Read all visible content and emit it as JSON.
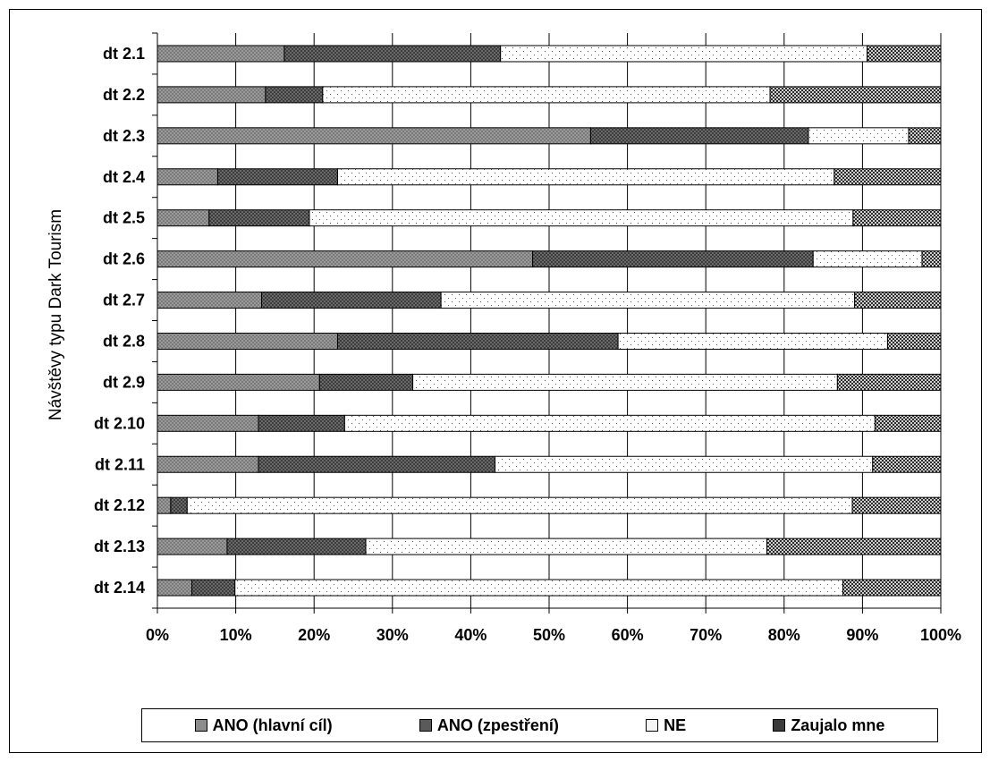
{
  "chart_data": {
    "type": "bar",
    "orientation": "horizontal",
    "stacked": "percent",
    "title": "",
    "xlabel": "",
    "ylabel": "Návštěvy typu Dark Tourism",
    "xlim": [
      0,
      100
    ],
    "x_ticks": [
      "0%",
      "10%",
      "20%",
      "30%",
      "40%",
      "50%",
      "60%",
      "70%",
      "80%",
      "90%",
      "100%"
    ],
    "categories": [
      "dt 2.1",
      "dt 2.2",
      "dt 2.3",
      "dt 2.4",
      "dt 2.5",
      "dt 2.6",
      "dt 2.7",
      "dt 2.8",
      "dt 2.9",
      "dt 2.10",
      "dt 2.11",
      "dt 2.12",
      "dt 2.13",
      "dt 2.14"
    ],
    "series": [
      {
        "name": "ANO (hlavní cíl)",
        "values": [
          16.2,
          13.8,
          55.3,
          7.7,
          6.6,
          47.9,
          13.3,
          23.0,
          20.7,
          12.9,
          12.9,
          1.7,
          8.9,
          4.4
        ]
      },
      {
        "name": "ANO (zpestření)",
        "values": [
          27.6,
          7.3,
          27.8,
          15.3,
          12.8,
          35.8,
          22.9,
          35.8,
          11.9,
          11.0,
          30.2,
          2.1,
          17.7,
          5.5
        ]
      },
      {
        "name": "NE",
        "values": [
          46.8,
          57.1,
          12.8,
          63.4,
          69.4,
          13.9,
          52.8,
          34.4,
          54.2,
          67.7,
          48.2,
          84.9,
          51.2,
          77.6
        ]
      },
      {
        "name": "Zaujalo mne",
        "values": [
          9.4,
          21.8,
          4.1,
          13.6,
          11.2,
          2.4,
          11.0,
          6.8,
          13.2,
          8.4,
          8.7,
          11.3,
          22.2,
          12.5
        ]
      }
    ],
    "grid": true,
    "legend_position": "bottom"
  },
  "colors": {
    "ano_hlavni": "#8c8c8c",
    "ano_zpestreni": "#5a5a5a",
    "ne": "#f4f4f4",
    "zaujalo": "#3a3a3a",
    "grid": "#000000",
    "background": "#ffffff"
  }
}
